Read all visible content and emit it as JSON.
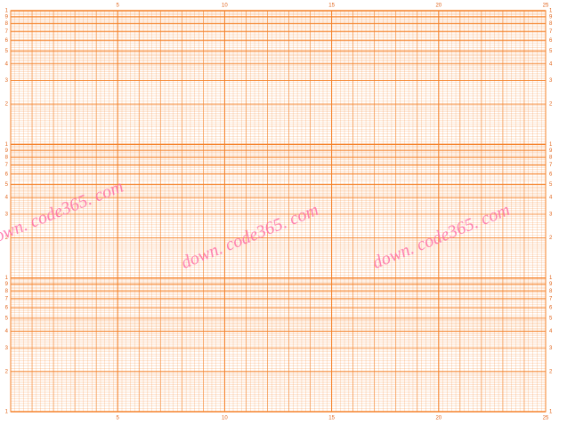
{
  "chart_data": {
    "type": "semilog-grid",
    "color": "#f5822a",
    "log_y": true,
    "grid": true,
    "xlim": [
      0,
      25
    ],
    "xticks": [
      5,
      10,
      15,
      20,
      25
    ],
    "ylim": [
      1,
      1000
    ],
    "yticks": [
      1,
      2,
      3,
      4,
      5,
      6,
      7,
      8,
      9,
      {
        "value": 10,
        "label": "1"
      },
      {
        "value": 20,
        "label": "2"
      },
      {
        "value": 30,
        "label": "3"
      },
      {
        "value": 40,
        "label": "4"
      },
      {
        "value": 50,
        "label": "5"
      },
      {
        "value": 60,
        "label": "6"
      },
      {
        "value": 70,
        "label": "7"
      },
      {
        "value": 80,
        "label": "8"
      },
      {
        "value": 90,
        "label": "9"
      },
      {
        "value": 100,
        "label": "1"
      },
      {
        "value": 200,
        "label": "2"
      },
      {
        "value": 300,
        "label": "3"
      },
      {
        "value": 400,
        "label": "4"
      },
      {
        "value": 500,
        "label": "5"
      },
      {
        "value": 600,
        "label": "6"
      },
      {
        "value": 700,
        "label": "7"
      },
      {
        "value": 800,
        "label": "8"
      },
      {
        "value": 900,
        "label": "9"
      },
      {
        "value": 1000,
        "label": "1"
      }
    ],
    "annotations": [
      "own. code365. com",
      "down. code365. com",
      "down. code365. com"
    ]
  }
}
